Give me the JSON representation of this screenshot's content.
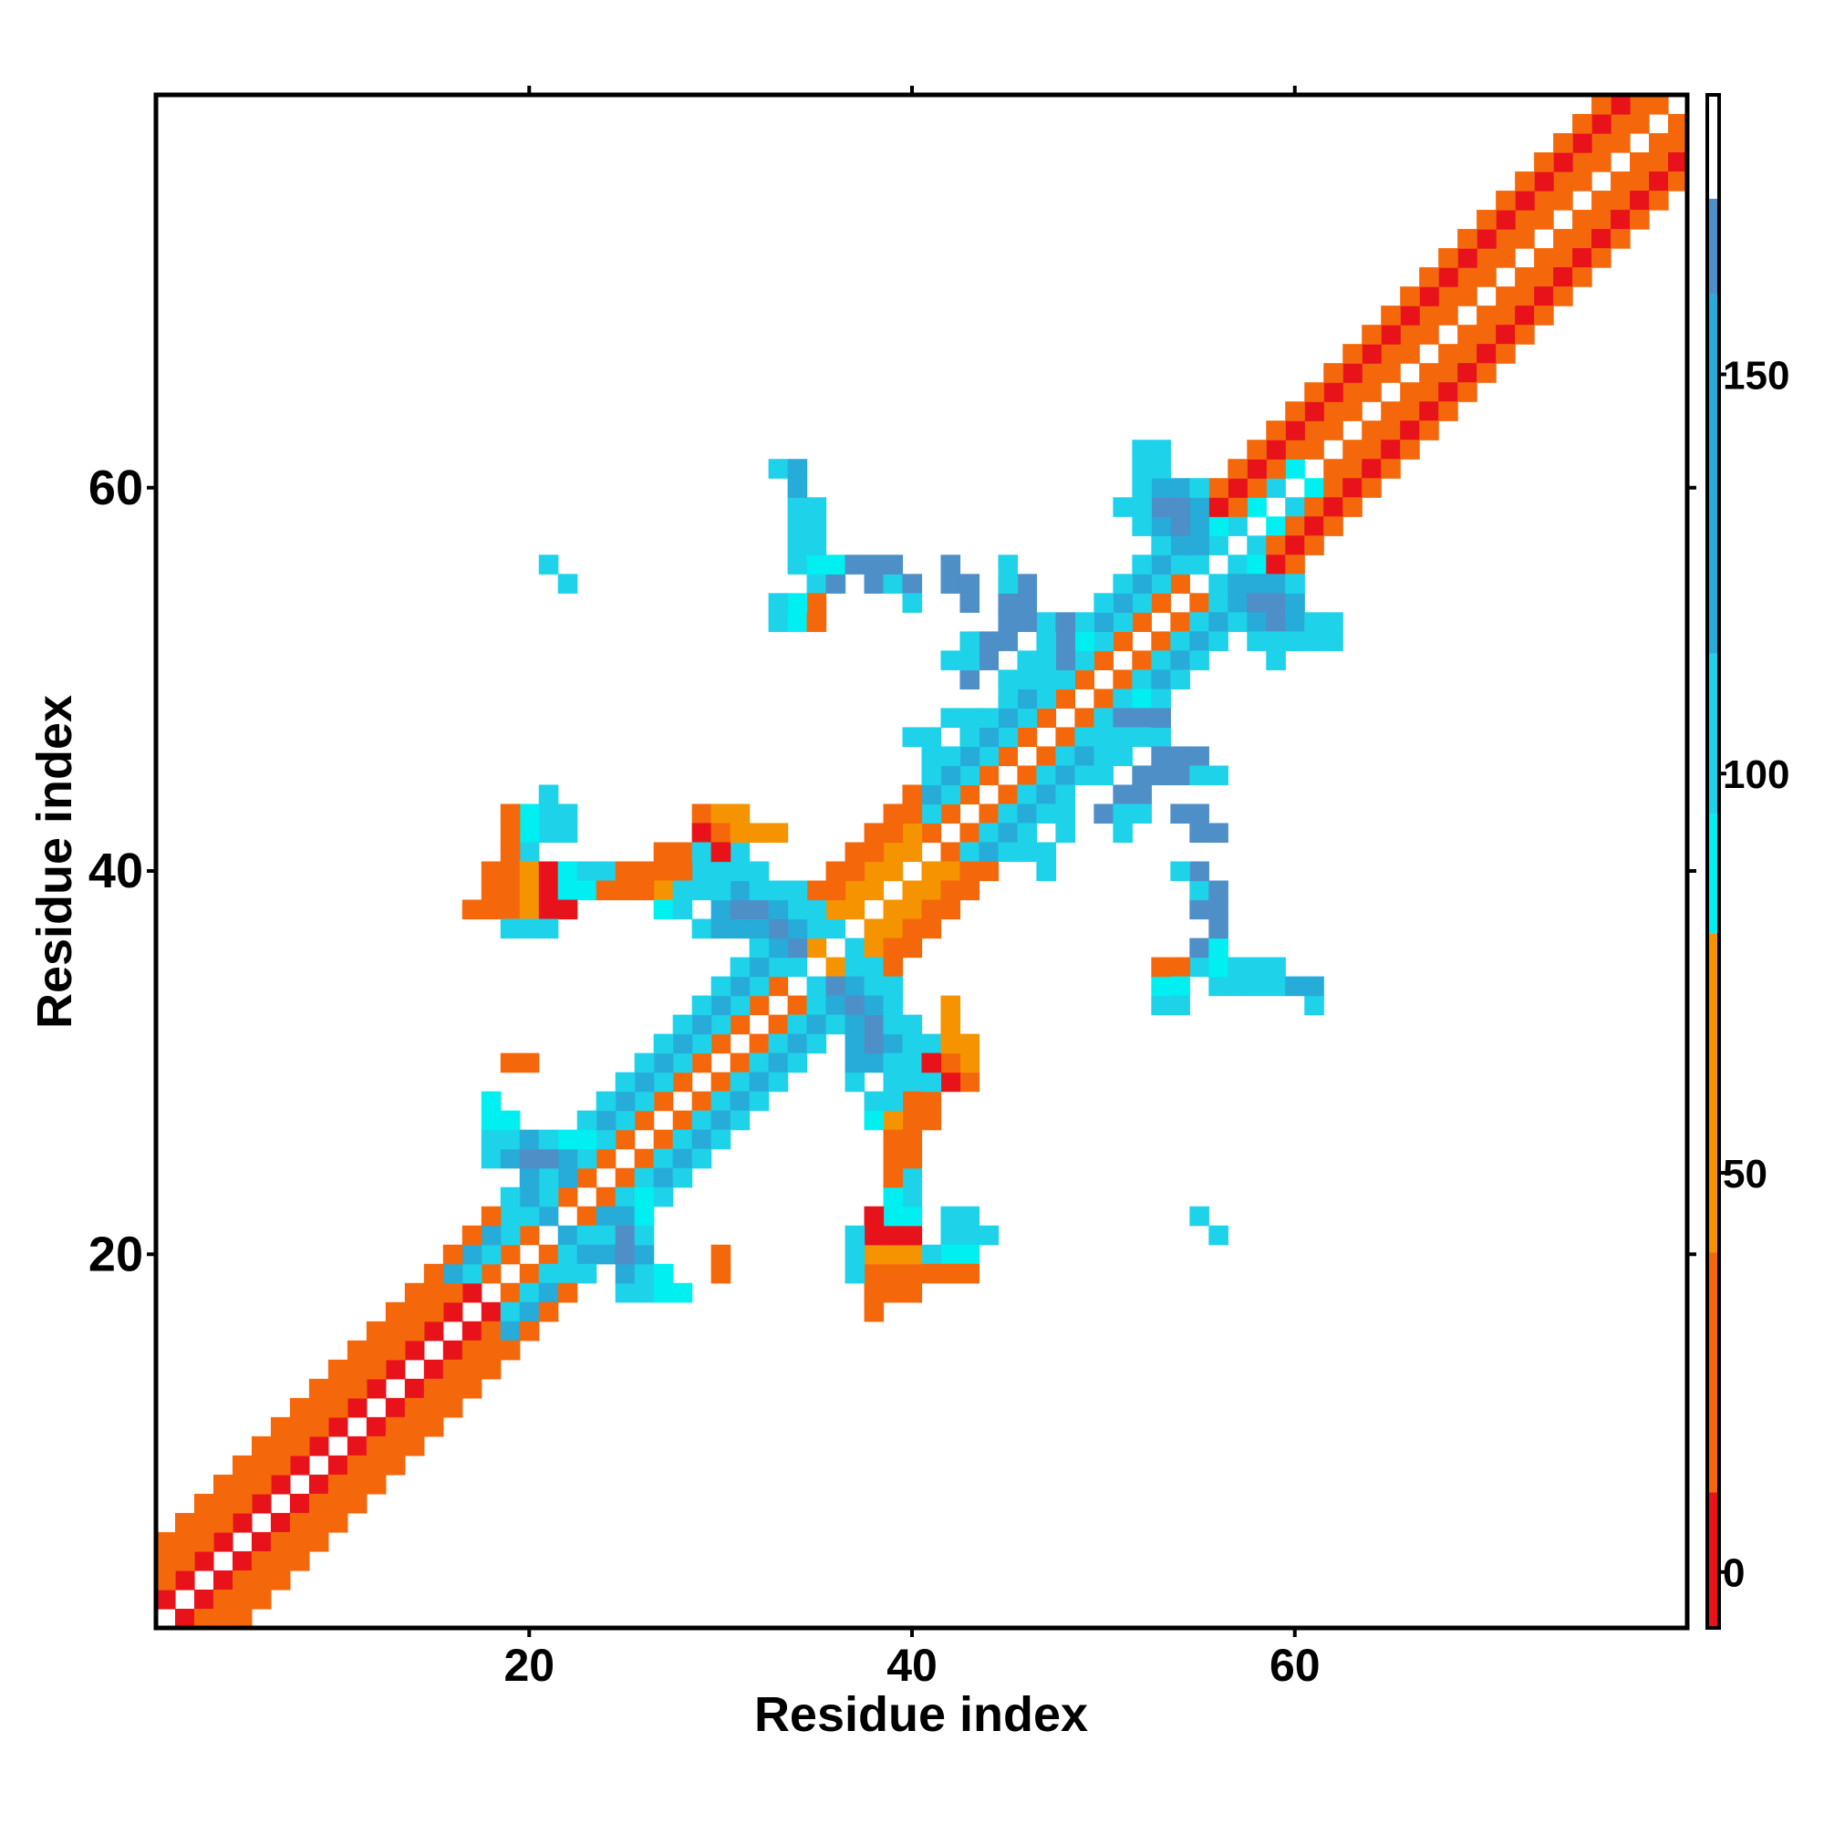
{
  "chart_data": {
    "type": "heatmap",
    "title": "",
    "xlabel": "Residue index",
    "ylabel": "Residue index",
    "xlim": [
      0.5,
      80.5
    ],
    "ylim": [
      0.5,
      80.5
    ],
    "x_ticks": [
      "20",
      "40",
      "60"
    ],
    "x_tick_values": [
      20,
      40,
      60
    ],
    "y_ticks": [
      "20",
      "40",
      "60"
    ],
    "y_tick_values": [
      20,
      40,
      60
    ],
    "grid": false,
    "symmetric": true,
    "colorbar": {
      "position": "right",
      "range": [
        -7,
        185
      ],
      "ticks": [
        "0",
        "50",
        "100",
        "150"
      ],
      "tick_values": [
        0,
        50,
        100,
        150
      ],
      "bins": [
        {
          "from": -7,
          "to": 10,
          "color": "#e8121a"
        },
        {
          "from": 10,
          "to": 40,
          "color": "#f4680b"
        },
        {
          "from": 40,
          "to": 80,
          "color": "#f59400"
        },
        {
          "from": 80,
          "to": 95,
          "color": "#00f0f2"
        },
        {
          "from": 95,
          "to": 115,
          "color": "#1ed2ea"
        },
        {
          "from": 115,
          "to": 160,
          "color": "#27abd8"
        },
        {
          "from": 160,
          "to": 172,
          "color": "#4f8fc7"
        },
        {
          "from": 172,
          "to": 185,
          "color": "#ffffff"
        }
      ]
    },
    "band_values": {
      "d1_bands": [
        [
          1,
          17,
          8
        ],
        [
          18,
          33,
          25
        ],
        [
          34,
          40,
          45
        ],
        [
          41,
          54,
          20
        ],
        [
          55,
          80,
          15
        ]
      ],
      "d2_bands": [
        [
          1,
          16,
          20
        ],
        [
          17,
          33,
          110
        ],
        [
          34,
          40,
          60
        ],
        [
          41,
          55,
          110
        ],
        [
          56,
          70,
          20
        ],
        [
          71,
          80,
          35
        ]
      ],
      "d3_bands": [
        [
          1,
          15,
          20
        ],
        [
          16,
          33,
          120
        ],
        [
          34,
          40,
          20
        ],
        [
          41,
          55,
          120
        ],
        [
          56,
          80,
          5
        ]
      ],
      "d4_bands": [
        [
          1,
          18,
          20
        ],
        [
          19,
          33,
          110
        ],
        [
          34,
          40,
          20
        ],
        [
          41,
          55,
          110
        ],
        [
          56,
          80,
          20
        ]
      ]
    },
    "cells": [
      {
        "i": 18,
        "j": 25,
        "v": 110
      },
      {
        "i": 18,
        "j": 26,
        "v": 110
      },
      {
        "i": 19,
        "j": 25,
        "v": 120
      },
      {
        "i": 19,
        "j": 26,
        "v": 110
      },
      {
        "i": 20,
        "j": 24,
        "v": 120
      },
      {
        "i": 20,
        "j": 25,
        "v": 165
      },
      {
        "i": 20,
        "j": 26,
        "v": 120
      },
      {
        "i": 21,
        "j": 24,
        "v": 110
      },
      {
        "i": 21,
        "j": 25,
        "v": 165
      },
      {
        "i": 21,
        "j": 26,
        "v": 110
      },
      {
        "i": 22,
        "j": 24,
        "v": 120
      },
      {
        "i": 22,
        "j": 25,
        "v": 120
      },
      {
        "i": 22,
        "j": 26,
        "v": 90
      },
      {
        "i": 23,
        "j": 26,
        "v": 90
      },
      {
        "i": 19,
        "j": 22,
        "v": 110
      },
      {
        "i": 20,
        "j": 22,
        "v": 110
      },
      {
        "i": 21,
        "j": 22,
        "v": 120
      },
      {
        "i": 23,
        "j": 23,
        "v": 110
      },
      {
        "i": 18,
        "j": 27,
        "v": 90
      },
      {
        "i": 18,
        "j": 28,
        "v": 90
      },
      {
        "i": 19,
        "j": 27,
        "v": 90
      },
      {
        "i": 29,
        "j": 37,
        "v": 110
      },
      {
        "i": 30,
        "j": 37,
        "v": 120
      },
      {
        "i": 30,
        "j": 38,
        "v": 120
      },
      {
        "i": 31,
        "j": 37,
        "v": 120
      },
      {
        "i": 31,
        "j": 38,
        "v": 165
      },
      {
        "i": 31,
        "j": 39,
        "v": 120
      },
      {
        "i": 32,
        "j": 36,
        "v": 110
      },
      {
        "i": 32,
        "j": 37,
        "v": 120
      },
      {
        "i": 32,
        "j": 38,
        "v": 165
      },
      {
        "i": 32,
        "j": 39,
        "v": 110
      },
      {
        "i": 33,
        "j": 35,
        "v": 110
      },
      {
        "i": 33,
        "j": 36,
        "v": 120
      },
      {
        "i": 33,
        "j": 37,
        "v": 165
      },
      {
        "i": 33,
        "j": 38,
        "v": 120
      },
      {
        "i": 34,
        "j": 35,
        "v": 110
      },
      {
        "i": 34,
        "j": 36,
        "v": 165
      },
      {
        "i": 34,
        "j": 37,
        "v": 120
      },
      {
        "i": 29,
        "j": 39,
        "v": 110
      },
      {
        "i": 30,
        "j": 39,
        "v": 110
      },
      {
        "i": 29,
        "j": 40,
        "v": 110
      },
      {
        "i": 30,
        "j": 40,
        "v": 110
      },
      {
        "i": 31,
        "j": 40,
        "v": 110
      },
      {
        "i": 32,
        "j": 40,
        "v": 110
      },
      {
        "i": 28,
        "j": 40,
        "v": 110
      },
      {
        "i": 28,
        "j": 41,
        "v": 110
      },
      {
        "i": 31,
        "j": 41,
        "v": 110
      },
      {
        "i": 33,
        "j": 39,
        "v": 110
      },
      {
        "i": 35,
        "j": 37,
        "v": 110
      },
      {
        "i": 35,
        "j": 38,
        "v": 110
      },
      {
        "i": 36,
        "j": 37,
        "v": 110
      },
      {
        "i": 34,
        "j": 38,
        "v": 110
      },
      {
        "i": 34,
        "j": 39,
        "v": 110
      },
      {
        "i": 53,
        "j": 57,
        "v": 110
      },
      {
        "i": 53,
        "j": 58,
        "v": 120
      },
      {
        "i": 53,
        "j": 59,
        "v": 165
      },
      {
        "i": 53,
        "j": 60,
        "v": 120
      },
      {
        "i": 53,
        "j": 61,
        "v": 110
      },
      {
        "i": 54,
        "j": 56,
        "v": 110
      },
      {
        "i": 54,
        "j": 57,
        "v": 120
      },
      {
        "i": 54,
        "j": 58,
        "v": 165
      },
      {
        "i": 54,
        "j": 59,
        "v": 165
      },
      {
        "i": 54,
        "j": 60,
        "v": 120
      },
      {
        "i": 55,
        "j": 56,
        "v": 110
      },
      {
        "i": 55,
        "j": 57,
        "v": 120
      },
      {
        "i": 55,
        "j": 58,
        "v": 120
      },
      {
        "i": 55,
        "j": 59,
        "v": 120
      },
      {
        "i": 55,
        "j": 60,
        "v": 110
      },
      {
        "i": 52,
        "j": 58,
        "v": 110
      },
      {
        "i": 52,
        "j": 59,
        "v": 110
      },
      {
        "i": 52,
        "j": 60,
        "v": 110
      },
      {
        "i": 52,
        "j": 61,
        "v": 110
      },
      {
        "i": 51,
        "j": 59,
        "v": 110
      },
      {
        "i": 56,
        "j": 57,
        "v": 110
      },
      {
        "i": 56,
        "j": 58,
        "v": 90
      },
      {
        "i": 53,
        "j": 62,
        "v": 110
      },
      {
        "i": 52,
        "j": 62,
        "v": 110
      },
      {
        "i": 57,
        "j": 58,
        "v": 110
      },
      {
        "i": 58,
        "j": 59,
        "v": 90
      },
      {
        "i": 59,
        "j": 60,
        "v": 110
      },
      {
        "i": 60,
        "j": 61,
        "v": 90
      },
      {
        "i": 45,
        "j": 50,
        "v": 110
      },
      {
        "i": 46,
        "j": 50,
        "v": 110
      },
      {
        "i": 46,
        "j": 51,
        "v": 110
      },
      {
        "i": 47,
        "j": 51,
        "v": 110
      },
      {
        "i": 47,
        "j": 52,
        "v": 110
      },
      {
        "i": 47,
        "j": 53,
        "v": 110
      },
      {
        "i": 48,
        "j": 52,
        "v": 110
      },
      {
        "i": 49,
        "j": 52,
        "v": 90
      },
      {
        "i": 44,
        "j": 48,
        "v": 110
      },
      {
        "i": 43,
        "j": 48,
        "v": 110
      },
      {
        "i": 42,
        "j": 48,
        "v": 110
      },
      {
        "i": 41,
        "j": 47,
        "v": 110
      },
      {
        "i": 41,
        "j": 46,
        "v": 110
      },
      {
        "i": 40,
        "j": 47,
        "v": 110
      },
      {
        "i": 44,
        "j": 52,
        "v": 165
      },
      {
        "i": 45,
        "j": 52,
        "v": 165
      },
      {
        "i": 45,
        "j": 53,
        "v": 165
      },
      {
        "i": 45,
        "j": 54,
        "v": 165
      },
      {
        "i": 42,
        "j": 55,
        "v": 165
      },
      {
        "i": 42,
        "j": 56,
        "v": 165
      },
      {
        "i": 51,
        "j": 44,
        "v": 165
      },
      {
        "i": 52,
        "j": 44,
        "v": 165
      },
      {
        "i": 53,
        "j": 47,
        "v": 110
      },
      {
        "i": 52,
        "j": 47,
        "v": 110
      },
      {
        "i": 51,
        "j": 47,
        "v": 110
      },
      {
        "i": 50,
        "j": 47,
        "v": 110
      },
      {
        "i": 49,
        "j": 47,
        "v": 110
      },
      {
        "i": 53,
        "j": 48,
        "v": 165
      },
      {
        "i": 52,
        "j": 48,
        "v": 165
      },
      {
        "i": 51,
        "j": 48,
        "v": 165
      },
      {
        "i": 50,
        "j": 43,
        "v": 165
      },
      {
        "i": 42,
        "j": 51,
        "v": 110
      },
      {
        "i": 43,
        "j": 51,
        "v": 110
      },
      {
        "i": 43,
        "j": 52,
        "v": 110
      },
      {
        "i": 56,
        "j": 34,
        "v": 110
      },
      {
        "i": 57,
        "j": 34,
        "v": 110
      },
      {
        "i": 58,
        "j": 34,
        "v": 110
      },
      {
        "i": 58,
        "j": 35,
        "v": 110
      },
      {
        "i": 59,
        "j": 34,
        "v": 110
      },
      {
        "i": 59,
        "j": 35,
        "v": 110
      },
      {
        "i": 60,
        "j": 34,
        "v": 110
      },
      {
        "i": 61,
        "j": 33,
        "v": 110
      },
      {
        "i": 61,
        "j": 34,
        "v": 120
      },
      {
        "i": 55,
        "j": 35,
        "v": 110
      },
      {
        "i": 55,
        "j": 36,
        "v": 165
      },
      {
        "i": 56,
        "j": 36,
        "v": 90
      },
      {
        "i": 55,
        "j": 38,
        "v": 165
      },
      {
        "i": 55,
        "j": 39,
        "v": 165
      },
      {
        "i": 55,
        "j": 40,
        "v": 165
      },
      {
        "i": 54,
        "j": 40,
        "v": 110
      },
      {
        "i": 53,
        "j": 33,
        "v": 110
      },
      {
        "i": 53,
        "j": 34,
        "v": 90
      },
      {
        "i": 53,
        "j": 35,
        "v": 30
      },
      {
        "i": 56,
        "j": 21,
        "v": 110
      },
      {
        "i": 55,
        "j": 22,
        "v": 110
      },
      {
        "i": 42,
        "j": 21,
        "v": 110
      },
      {
        "i": 42,
        "j": 22,
        "v": 110
      },
      {
        "i": 42,
        "j": 20,
        "v": 90
      },
      {
        "i": 42,
        "j": 19,
        "v": 30
      },
      {
        "i": 43,
        "j": 21,
        "v": 110
      },
      {
        "i": 41,
        "j": 20,
        "v": 110
      },
      {
        "i": 41,
        "j": 19,
        "v": 20
      },
      {
        "i": 40,
        "j": 18,
        "v": 30
      },
      {
        "i": 40,
        "j": 19,
        "v": 30
      },
      {
        "i": 40,
        "j": 20,
        "v": 90
      },
      {
        "i": 40,
        "j": 21,
        "v": 40
      },
      {
        "i": 40,
        "j": 22,
        "v": 30
      },
      {
        "i": 40,
        "j": 23,
        "v": 110
      },
      {
        "i": 40,
        "j": 24,
        "v": 110
      },
      {
        "i": 39,
        "j": 18,
        "v": 30
      },
      {
        "i": 39,
        "j": 19,
        "v": 40
      },
      {
        "i": 39,
        "j": 20,
        "v": 110
      },
      {
        "i": 39,
        "j": 21,
        "v": 40
      },
      {
        "i": 39,
        "j": 22,
        "v": 5
      },
      {
        "i": 39,
        "j": 23,
        "v": 90
      },
      {
        "i": 39,
        "j": 24,
        "v": 90
      },
      {
        "i": 38,
        "j": 18,
        "v": 30
      },
      {
        "i": 38,
        "j": 19,
        "v": 30
      },
      {
        "i": 38,
        "j": 20,
        "v": 90
      },
      {
        "i": 38,
        "j": 21,
        "v": 40
      },
      {
        "i": 38,
        "j": 22,
        "v": 5
      },
      {
        "i": 37,
        "j": 20,
        "v": 110
      },
      {
        "i": 37,
        "j": 21,
        "v": 110
      },
      {
        "i": 38,
        "j": 17,
        "v": 30
      },
      {
        "i": 40,
        "j": 25,
        "v": 30
      },
      {
        "i": 40,
        "j": 26,
        "v": 40
      },
      {
        "i": 40,
        "j": 27,
        "v": 30
      },
      {
        "i": 40,
        "j": 28,
        "v": 30
      },
      {
        "i": 41,
        "j": 27,
        "v": 30
      },
      {
        "i": 41,
        "j": 28,
        "v": 30
      },
      {
        "i": 39,
        "j": 27,
        "v": 30
      },
      {
        "i": 39,
        "j": 28,
        "v": 30
      },
      {
        "i": 38,
        "j": 27,
        "v": 90
      },
      {
        "i": 43,
        "j": 29,
        "v": 30
      },
      {
        "i": 43,
        "j": 30,
        "v": 40
      },
      {
        "i": 43,
        "j": 31,
        "v": 40
      },
      {
        "i": 42,
        "j": 29,
        "v": 5
      },
      {
        "i": 42,
        "j": 30,
        "v": 110
      },
      {
        "i": 41,
        "j": 29,
        "v": 110
      },
      {
        "i": 41,
        "j": 30,
        "v": 110
      },
      {
        "i": 41,
        "j": 31,
        "v": 110
      },
      {
        "i": 33,
        "j": 42,
        "v": 40
      },
      {
        "i": 32,
        "j": 42,
        "v": 40
      },
      {
        "i": 31,
        "j": 42,
        "v": 40
      },
      {
        "i": 30,
        "j": 42,
        "v": 30
      },
      {
        "i": 30,
        "j": 41,
        "v": 5
      },
      {
        "i": 29,
        "j": 41,
        "v": 110
      },
      {
        "i": 28,
        "j": 38,
        "v": 110
      },
      {
        "i": 28,
        "j": 39,
        "v": 110
      },
      {
        "i": 27,
        "j": 38,
        "v": 90
      },
      {
        "i": 27,
        "j": 39,
        "v": 40
      },
      {
        "i": 27,
        "j": 40,
        "v": 30
      },
      {
        "i": 26,
        "j": 39,
        "v": 30
      },
      {
        "i": 26,
        "j": 40,
        "v": 30
      },
      {
        "i": 25,
        "j": 39,
        "v": 30
      },
      {
        "i": 24,
        "j": 39,
        "v": 30
      },
      {
        "i": 23,
        "j": 39,
        "v": 90
      },
      {
        "i": 22,
        "j": 39,
        "v": 90
      },
      {
        "i": 22,
        "j": 40,
        "v": 90
      },
      {
        "i": 21,
        "j": 38,
        "v": 5
      },
      {
        "i": 21,
        "j": 39,
        "v": 5
      },
      {
        "i": 21,
        "j": 40,
        "v": 5
      },
      {
        "i": 20,
        "j": 37,
        "v": 110
      },
      {
        "i": 20,
        "j": 38,
        "v": 40
      },
      {
        "i": 20,
        "j": 39,
        "v": 40
      },
      {
        "i": 20,
        "j": 40,
        "v": 40
      },
      {
        "i": 19,
        "j": 37,
        "v": 110
      },
      {
        "i": 19,
        "j": 38,
        "v": 30
      },
      {
        "i": 19,
        "j": 39,
        "v": 30
      },
      {
        "i": 19,
        "j": 40,
        "v": 30
      },
      {
        "i": 18,
        "j": 38,
        "v": 30
      },
      {
        "i": 22,
        "j": 43,
        "v": 110
      },
      {
        "i": 21,
        "j": 43,
        "v": 110
      },
      {
        "i": 21,
        "j": 44,
        "v": 110
      },
      {
        "i": 20,
        "j": 43,
        "v": 90
      },
      {
        "i": 19,
        "j": 43,
        "v": 30
      },
      {
        "i": 19,
        "j": 30,
        "v": 30
      },
      {
        "i": 30,
        "j": 20,
        "v": 30
      },
      {
        "i": 35,
        "j": 54,
        "v": 30
      },
      {
        "i": 34,
        "j": 54,
        "v": 90
      },
      {
        "i": 33,
        "j": 54,
        "v": 110
      },
      {
        "i": 35,
        "j": 56,
        "v": 90
      },
      {
        "i": 35,
        "j": 57,
        "v": 110
      },
      {
        "i": 34,
        "j": 57,
        "v": 110
      },
      {
        "i": 35,
        "j": 59,
        "v": 110
      },
      {
        "i": 34,
        "j": 59,
        "v": 110
      },
      {
        "i": 34,
        "j": 60,
        "v": 120
      },
      {
        "i": 34,
        "j": 61,
        "v": 120
      },
      {
        "i": 33,
        "j": 61,
        "v": 110
      },
      {
        "i": 39,
        "j": 55,
        "v": 110
      },
      {
        "i": 39,
        "j": 56,
        "v": 165
      },
      {
        "i": 38,
        "j": 56,
        "v": 165
      },
      {
        "i": 37,
        "j": 56,
        "v": 165
      },
      {
        "i": 43,
        "j": 54,
        "v": 165
      },
      {
        "i": 43,
        "j": 55,
        "v": 165
      },
      {
        "i": 46,
        "j": 53,
        "v": 165
      },
      {
        "i": 46,
        "j": 54,
        "v": 165
      },
      {
        "i": 46,
        "j": 55,
        "v": 165
      },
      {
        "i": 45,
        "j": 55,
        "v": 110
      },
      {
        "i": 45,
        "j": 56,
        "v": 110
      },
      {
        "i": 44,
        "j": 51,
        "v": 165
      }
    ]
  }
}
